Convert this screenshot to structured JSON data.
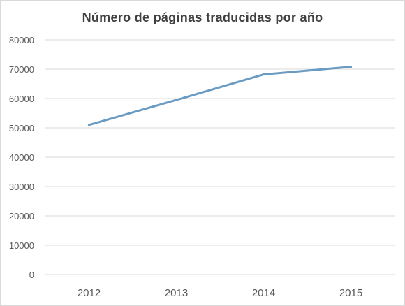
{
  "chart_data": {
    "type": "line",
    "title": "Número de páginas traducidas por año",
    "xlabel": "",
    "ylabel": "",
    "categories": [
      "2012",
      "2013",
      "2014",
      "2015"
    ],
    "series": [
      {
        "values": [
          51000,
          59500,
          68200,
          70800
        ],
        "color": "#6a9bc3"
      }
    ],
    "ylim": [
      0,
      80000
    ],
    "yticks": [
      0,
      10000,
      20000,
      30000,
      40000,
      50000,
      60000,
      70000,
      80000
    ],
    "grid": true,
    "legend": "none"
  }
}
